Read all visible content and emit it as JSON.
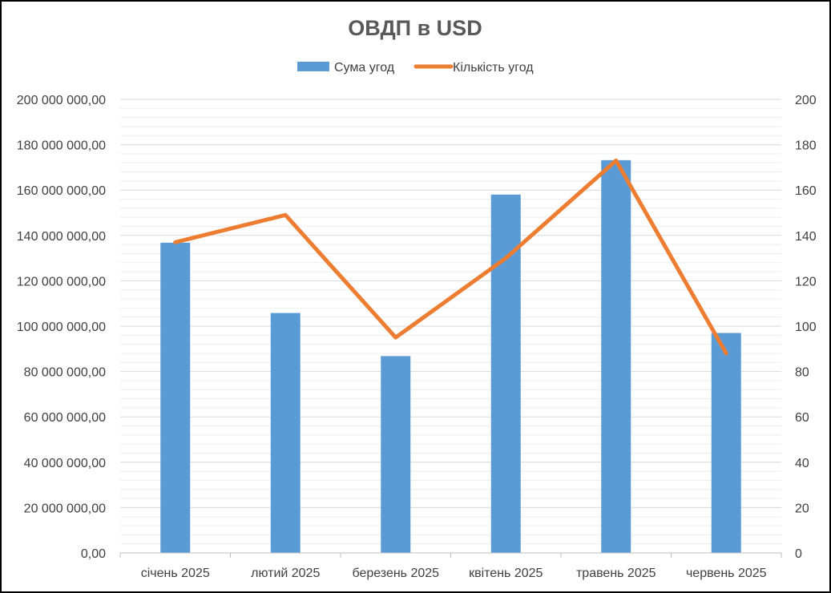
{
  "chart_data": {
    "type": "bar",
    "title": "ОВДП в USD",
    "categories": [
      "січень 2025",
      "лютий 2025",
      "березень 2025",
      "квітень 2025",
      "травень 2025",
      "червень 2025"
    ],
    "series": [
      {
        "name": "Сума угод",
        "type": "bar",
        "axis": "left",
        "color": "#5b9bd5",
        "values": [
          136800000,
          105800000,
          86800000,
          158000000,
          173200000,
          97000000
        ]
      },
      {
        "name": "Кількість угод",
        "type": "line",
        "axis": "right",
        "color": "#ed7d31",
        "values": [
          137,
          149,
          95,
          130,
          173,
          88
        ]
      }
    ],
    "y_left": {
      "min": 0,
      "max": 200000000,
      "ticks": [
        "0,00",
        "20 000 000,00",
        "40 000 000,00",
        "60 000 000,00",
        "80 000 000,00",
        "100 000 000,00",
        "120 000 000,00",
        "140 000 000,00",
        "160 000 000,00",
        "180 000 000,00",
        "200 000 000,00"
      ]
    },
    "y_right": {
      "min": 0,
      "max": 200,
      "ticks": [
        "0",
        "20",
        "40",
        "60",
        "80",
        "100",
        "120",
        "140",
        "160",
        "180",
        "200"
      ]
    },
    "grid": true,
    "legend_position": "top"
  }
}
